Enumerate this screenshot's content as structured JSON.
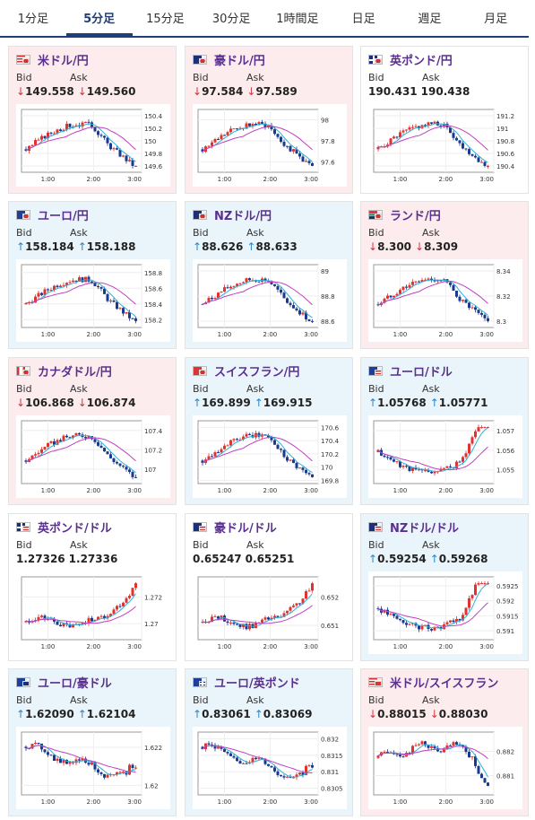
{
  "tabs": [
    {
      "label": "1分足",
      "active": false
    },
    {
      "label": "5分足",
      "active": true
    },
    {
      "label": "15分足",
      "active": false
    },
    {
      "label": "30分足",
      "active": false
    },
    {
      "label": "1時間足",
      "active": false
    },
    {
      "label": "日足",
      "active": false
    },
    {
      "label": "週足",
      "active": false
    },
    {
      "label": "月足",
      "active": false
    }
  ],
  "colors": {
    "up": "#2a86c9",
    "down": "#d9303a",
    "ma_short": "#2fb0d8",
    "ma_long": "#c040c0",
    "candle_up": "#e0332f",
    "candle_down": "#1a3a8f"
  },
  "bid_label": "Bid",
  "ask_label": "Ask",
  "cards": [
    {
      "title": "米ドル/円",
      "flag": "us-jp-flag",
      "dir": "down",
      "bid": "149.558",
      "ask": "149.560",
      "chart_data": {
        "type": "candlestick",
        "x_ticks": [
          "1:00",
          "2:00",
          "3:00"
        ],
        "y_ticks": [
          "150.4",
          "150.2",
          "150",
          "149.8",
          "149.6"
        ],
        "y_range": [
          149.5,
          150.5
        ],
        "shape": "peak-mid-drop"
      }
    },
    {
      "title": "豪ドル/円",
      "flag": "au-jp-flag",
      "dir": "down",
      "bid": "97.584",
      "ask": "97.589",
      "chart_data": {
        "type": "candlestick",
        "x_ticks": [
          "1:00",
          "2:00",
          "3:00"
        ],
        "y_ticks": [
          "98",
          "97.8",
          "97.6"
        ],
        "y_range": [
          97.5,
          98.1
        ],
        "shape": "peak-mid-drop"
      }
    },
    {
      "title": "英ポンド/円",
      "flag": "gb-jp-flag",
      "dir": "neutral",
      "bid": "190.431",
      "ask": "190.438",
      "chart_data": {
        "type": "candlestick",
        "x_ticks": [
          "1:00",
          "2:00",
          "3:00"
        ],
        "y_ticks": [
          "191.2",
          "191",
          "190.8",
          "190.6",
          "190.4"
        ],
        "y_range": [
          190.3,
          191.3
        ],
        "shape": "peak-mid-drop"
      }
    },
    {
      "title": "ユーロ/円",
      "flag": "eu-jp-flag",
      "dir": "up",
      "bid": "158.184",
      "ask": "158.188",
      "chart_data": {
        "type": "candlestick",
        "x_ticks": [
          "1:00",
          "2:00",
          "3:00"
        ],
        "y_ticks": [
          "158.8",
          "158.6",
          "158.4",
          "158.2"
        ],
        "y_range": [
          158.1,
          158.9
        ],
        "shape": "peak-mid-drop"
      }
    },
    {
      "title": "NZドル/円",
      "flag": "nz-jp-flag",
      "dir": "up",
      "bid": "88.626",
      "ask": "88.633",
      "chart_data": {
        "type": "candlestick",
        "x_ticks": [
          "1:00",
          "2:00",
          "3:00"
        ],
        "y_ticks": [
          "89",
          "88.8",
          "88.6"
        ],
        "y_range": [
          88.55,
          89.05
        ],
        "shape": "peak-mid-drop"
      }
    },
    {
      "title": "ランド/円",
      "flag": "za-jp-flag",
      "dir": "down",
      "bid": "8.300",
      "ask": "8.309",
      "chart_data": {
        "type": "candlestick",
        "x_ticks": [
          "1:00",
          "2:00",
          "3:00"
        ],
        "y_ticks": [
          "8.34",
          "8.32",
          "8.3"
        ],
        "y_range": [
          8.295,
          8.345
        ],
        "shape": "peak-mid-drop"
      }
    },
    {
      "title": "カナダドル/円",
      "flag": "ca-jp-flag",
      "dir": "down",
      "bid": "106.868",
      "ask": "106.874",
      "chart_data": {
        "type": "candlestick",
        "x_ticks": [
          "1:00",
          "2:00",
          "3:00"
        ],
        "y_ticks": [
          "107.4",
          "107.2",
          "107"
        ],
        "y_range": [
          106.85,
          107.5
        ],
        "shape": "peak-mid-drop"
      }
    },
    {
      "title": "スイスフラン/円",
      "flag": "ch-jp-flag",
      "dir": "up",
      "bid": "169.899",
      "ask": "169.915",
      "chart_data": {
        "type": "candlestick",
        "x_ticks": [
          "1:00",
          "2:00",
          "3:00"
        ],
        "y_ticks": [
          "170.6",
          "170.4",
          "170.2",
          "170",
          "169.8"
        ],
        "y_range": [
          169.75,
          170.7
        ],
        "shape": "peak-mid-drop"
      }
    },
    {
      "title": "ユーロ/ドル",
      "flag": "eu-us-flag",
      "dir": "up",
      "bid": "1.05768",
      "ask": "1.05771",
      "chart_data": {
        "type": "candlestick",
        "x_ticks": [
          "1:00",
          "2:00",
          "3:00"
        ],
        "y_ticks": [
          "1.057",
          "1.056",
          "1.055"
        ],
        "y_range": [
          1.0543,
          1.0575
        ],
        "shape": "dip-rise"
      }
    },
    {
      "title": "英ポンド/ドル",
      "flag": "gb-us-flag",
      "dir": "neutral",
      "bid": "1.27326",
      "ask": "1.27336",
      "chart_data": {
        "type": "candlestick",
        "x_ticks": [
          "1:00",
          "2:00",
          "3:00"
        ],
        "y_ticks": [
          "1.272",
          "1.27"
        ],
        "y_range": [
          1.2688,
          1.2735
        ],
        "shape": "flat-rise"
      }
    },
    {
      "title": "豪ドル/ドル",
      "flag": "au-us-flag",
      "dir": "neutral",
      "bid": "0.65247",
      "ask": "0.65251",
      "chart_data": {
        "type": "candlestick",
        "x_ticks": [
          "1:00",
          "2:00",
          "3:00"
        ],
        "y_ticks": [
          "0.652",
          "0.651"
        ],
        "y_range": [
          0.6505,
          0.6527
        ],
        "shape": "flat-rise"
      }
    },
    {
      "title": "NZドル/ドル",
      "flag": "nz-us-flag",
      "dir": "up",
      "bid": "0.59254",
      "ask": "0.59268",
      "chart_data": {
        "type": "candlestick",
        "x_ticks": [
          "1:00",
          "2:00",
          "3:00"
        ],
        "y_ticks": [
          "0.5925",
          "0.592",
          "0.5915",
          "0.591"
        ],
        "y_range": [
          0.5907,
          0.5928
        ],
        "shape": "dip-rise"
      }
    },
    {
      "title": "ユーロ/豪ドル",
      "flag": "eu-au-flag",
      "dir": "up",
      "bid": "1.62090",
      "ask": "1.62104",
      "chart_data": {
        "type": "candlestick",
        "x_ticks": [
          "1:00",
          "2:00",
          "3:00"
        ],
        "y_ticks": [
          "1.622",
          "1.62"
        ],
        "y_range": [
          1.6195,
          1.6228
        ],
        "shape": "high-drift-low"
      }
    },
    {
      "title": "ユーロ/英ポンド",
      "flag": "eu-gb-flag",
      "dir": "up",
      "bid": "0.83061",
      "ask": "0.83069",
      "chart_data": {
        "type": "candlestick",
        "x_ticks": [
          "1:00",
          "2:00",
          "3:00"
        ],
        "y_ticks": [
          "0.832",
          "0.8315",
          "0.831",
          "0.8305"
        ],
        "y_range": [
          0.8303,
          0.8322
        ],
        "shape": "high-drift-low"
      }
    },
    {
      "title": "米ドル/スイスフラン",
      "flag": "us-ch-flag",
      "dir": "down",
      "bid": "0.88015",
      "ask": "0.88030",
      "chart_data": {
        "type": "candlestick",
        "x_ticks": [
          "1:00",
          "2:00",
          "3:00"
        ],
        "y_ticks": [
          "0.882",
          "0.881"
        ],
        "y_range": [
          0.8802,
          0.8828
        ],
        "shape": "hump-drop"
      }
    }
  ]
}
